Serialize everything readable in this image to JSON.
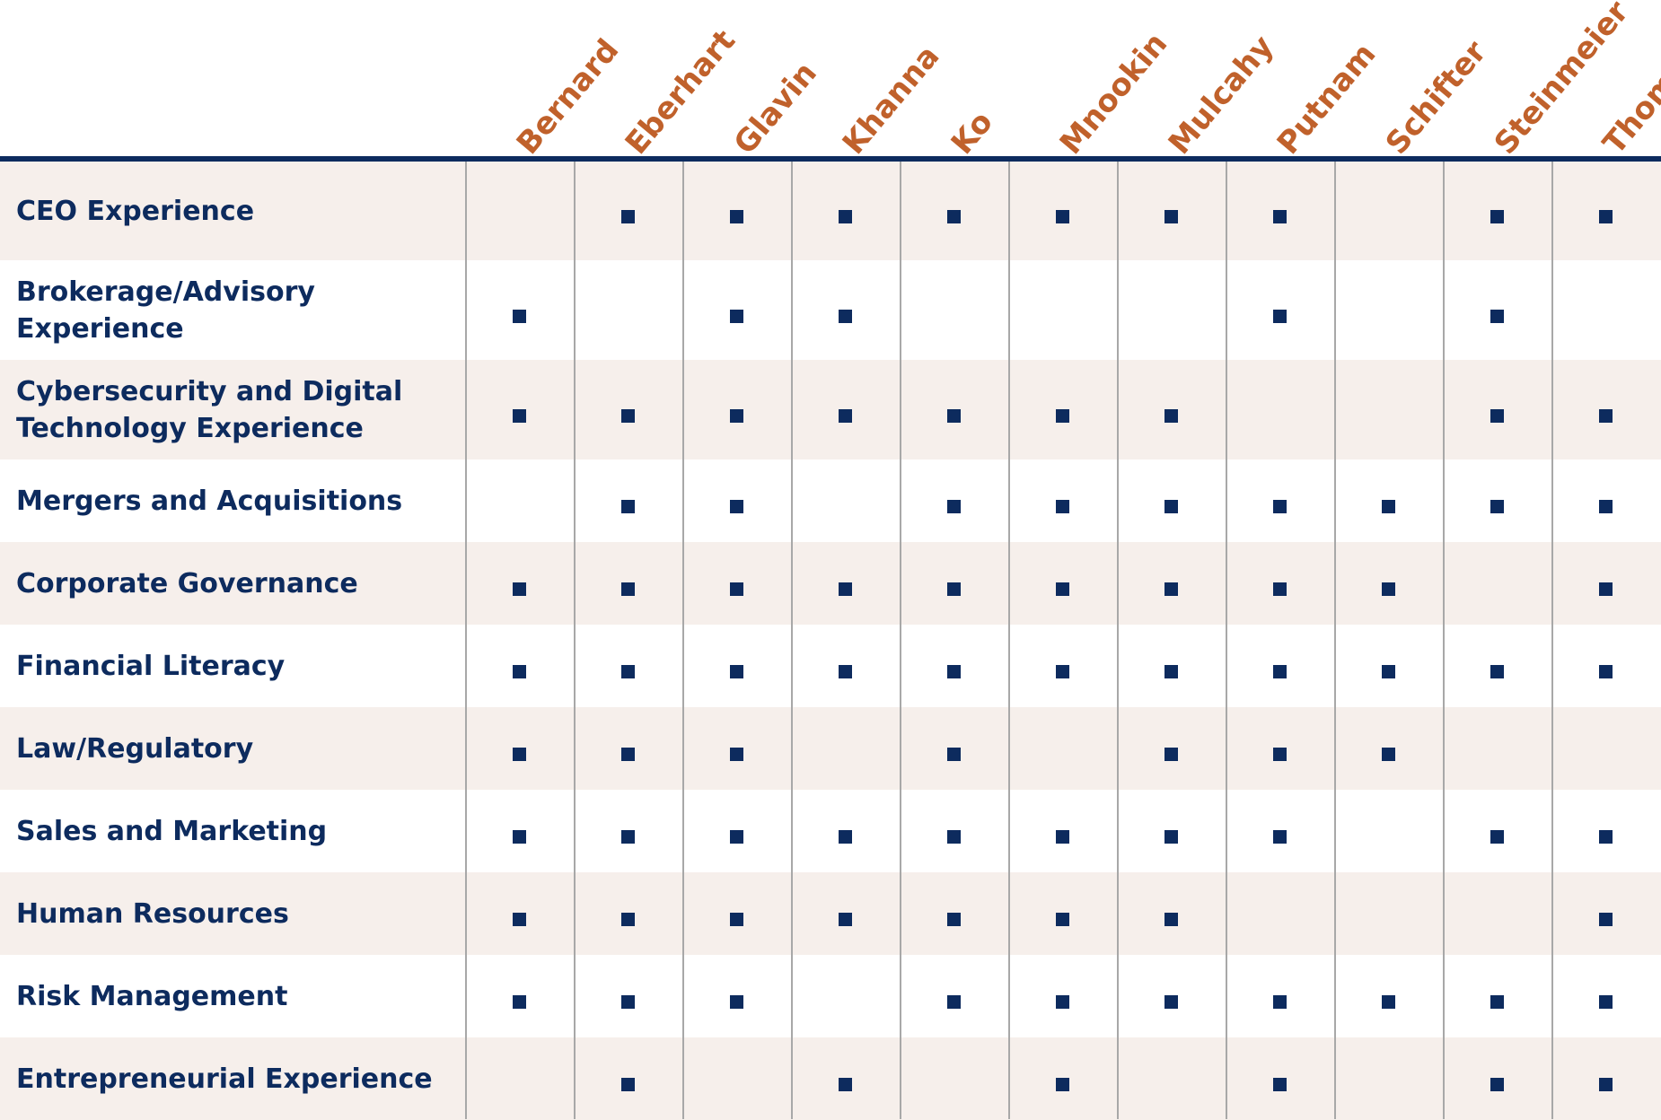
{
  "directors": [
    "Bernard",
    "Eberhart",
    "Glavin",
    "Khanna",
    "Ko",
    "Mnookin",
    "Mulcahy",
    "Putnam",
    "Schifter",
    "Steinmeier",
    "Thomas"
  ],
  "skills": [
    {
      "label": "CEO Experience",
      "marks": [
        0,
        1,
        1,
        1,
        1,
        1,
        1,
        1,
        0,
        1,
        1
      ]
    },
    {
      "label": "Brokerage/Advisory Experience",
      "marks": [
        1,
        0,
        1,
        1,
        0,
        0,
        0,
        1,
        0,
        1,
        0
      ]
    },
    {
      "label": "Cybersecurity and Digital Technology Experience",
      "marks": [
        1,
        1,
        1,
        1,
        1,
        1,
        1,
        0,
        0,
        1,
        1
      ]
    },
    {
      "label": "Mergers and Acquisitions",
      "marks": [
        0,
        1,
        1,
        0,
        1,
        1,
        1,
        1,
        1,
        1,
        1
      ]
    },
    {
      "label": "Corporate Governance",
      "marks": [
        1,
        1,
        1,
        1,
        1,
        1,
        1,
        1,
        1,
        0,
        1
      ]
    },
    {
      "label": "Financial Literacy",
      "marks": [
        1,
        1,
        1,
        1,
        1,
        1,
        1,
        1,
        1,
        1,
        1
      ]
    },
    {
      "label": "Law/Regulatory",
      "marks": [
        1,
        1,
        1,
        0,
        1,
        0,
        1,
        1,
        1,
        0,
        0
      ]
    },
    {
      "label": "Sales and Marketing",
      "marks": [
        1,
        1,
        1,
        1,
        1,
        1,
        1,
        1,
        0,
        1,
        1
      ]
    },
    {
      "label": "Human Resources",
      "marks": [
        1,
        1,
        1,
        1,
        1,
        1,
        1,
        0,
        0,
        0,
        1
      ]
    },
    {
      "label": "Risk Management",
      "marks": [
        1,
        1,
        1,
        0,
        1,
        1,
        1,
        1,
        1,
        1,
        1
      ]
    },
    {
      "label": "Entrepreneurial Experience",
      "marks": [
        0,
        1,
        0,
        1,
        0,
        1,
        0,
        1,
        0,
        1,
        1
      ]
    }
  ],
  "colors": {
    "header_text": "#c0612b",
    "navy": "#0d2b5e",
    "row_shade": "#f6efeb",
    "grid_line": "#a8a8a8"
  }
}
